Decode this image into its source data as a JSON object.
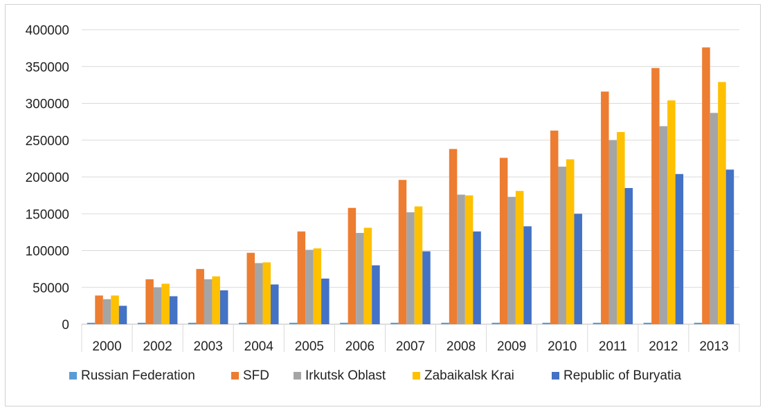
{
  "chart_data": {
    "type": "bar",
    "categories": [
      "2000",
      "2002",
      "2003",
      "2004",
      "2005",
      "2006",
      "2007",
      "2008",
      "2009",
      "2010",
      "2011",
      "2012",
      "2013"
    ],
    "series": [
      {
        "name": "Russian Federation",
        "color": "#5B9BD5",
        "values": [
          2000,
          2000,
          2000,
          2000,
          2000,
          2000,
          2000,
          2000,
          2000,
          2000,
          2000,
          2000,
          2000
        ]
      },
      {
        "name": "SFD",
        "color": "#ED7D31",
        "values": [
          39000,
          61000,
          75000,
          97000,
          126000,
          158000,
          196000,
          238000,
          226000,
          263000,
          316000,
          348000,
          376000
        ]
      },
      {
        "name": "Irkutsk Oblast",
        "color": "#A5A5A5",
        "values": [
          34000,
          50000,
          61000,
          83000,
          101000,
          124000,
          152000,
          176000,
          173000,
          214000,
          250000,
          269000,
          287000
        ]
      },
      {
        "name": "Zabaikalsk Krai",
        "color": "#FFC000",
        "values": [
          39000,
          55000,
          65000,
          84000,
          103000,
          131000,
          160000,
          175000,
          181000,
          224000,
          261000,
          304000,
          329000
        ]
      },
      {
        "name": "Republic of Buryatia",
        "color": "#4472C4",
        "values": [
          25000,
          38000,
          46000,
          54000,
          62000,
          80000,
          99000,
          126000,
          133000,
          150000,
          185000,
          204000,
          210000
        ]
      }
    ],
    "yticks": [
      "0",
      "50000",
      "100000",
      "150000",
      "200000",
      "250000",
      "300000",
      "350000",
      "400000"
    ],
    "ylim": [
      0,
      400000
    ],
    "grid": true,
    "legend_position": "bottom"
  }
}
